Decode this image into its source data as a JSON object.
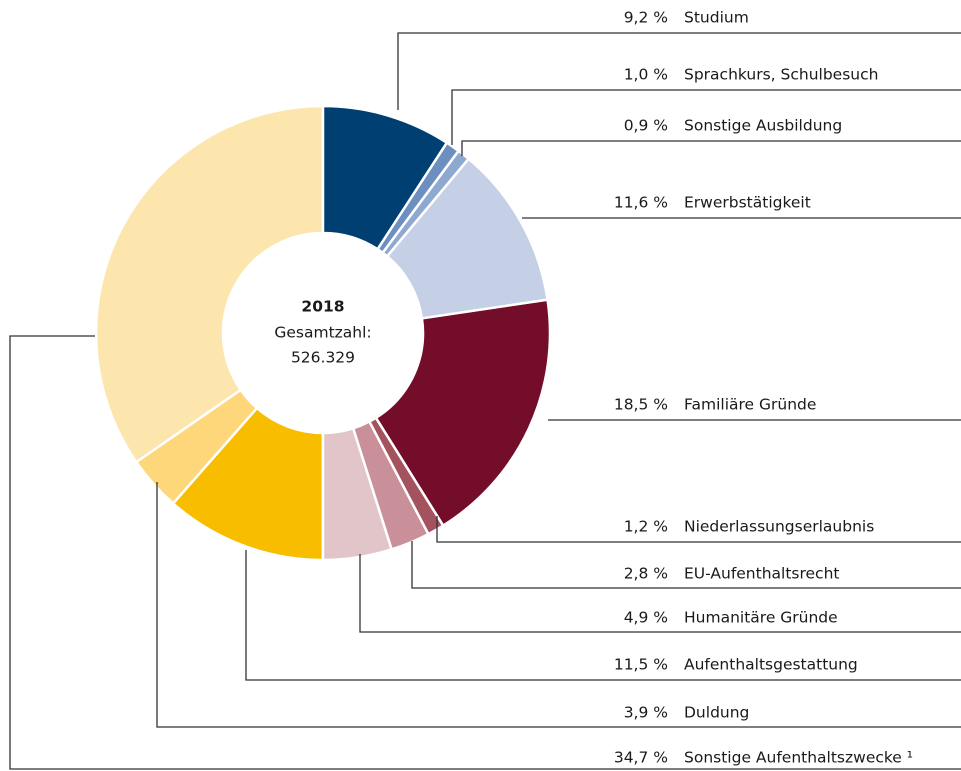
{
  "chart_data": {
    "type": "donut",
    "center_title": "2018",
    "center_lines": [
      "Gesamtzahl:",
      "526.329"
    ],
    "categories": [
      "Studium",
      "Sprachkurs, Schulbesuch",
      "Sonstige Ausbildung",
      "Erwerbstätigkeit",
      "Familiäre Gründe",
      "Niederlassungserlaubnis",
      "EU-Aufenthaltsrecht",
      "Humanitäre Gründe",
      "Aufenthaltsgestattung",
      "Duldung",
      "Sonstige Aufenthaltszwecke ¹"
    ],
    "values": [
      9.2,
      1.0,
      0.9,
      11.6,
      18.5,
      1.2,
      2.8,
      4.9,
      11.5,
      3.9,
      34.7
    ],
    "value_labels": [
      "9,2 %",
      "1,0 %",
      "0,9 %",
      "11,6 %",
      "18,5 %",
      "1,2 %",
      "2,8 %",
      "4,9 %",
      "11,5 %",
      "3,9 %",
      "34,7 %"
    ],
    "colors": [
      "#003f72",
      "#6d8fbf",
      "#8ea9cf",
      "#c5cfe6",
      "#730d29",
      "#a3525e",
      "#c9909a",
      "#e1c5c9",
      "#f9bd00",
      "#fdd77a",
      "#fde5ae"
    ]
  }
}
